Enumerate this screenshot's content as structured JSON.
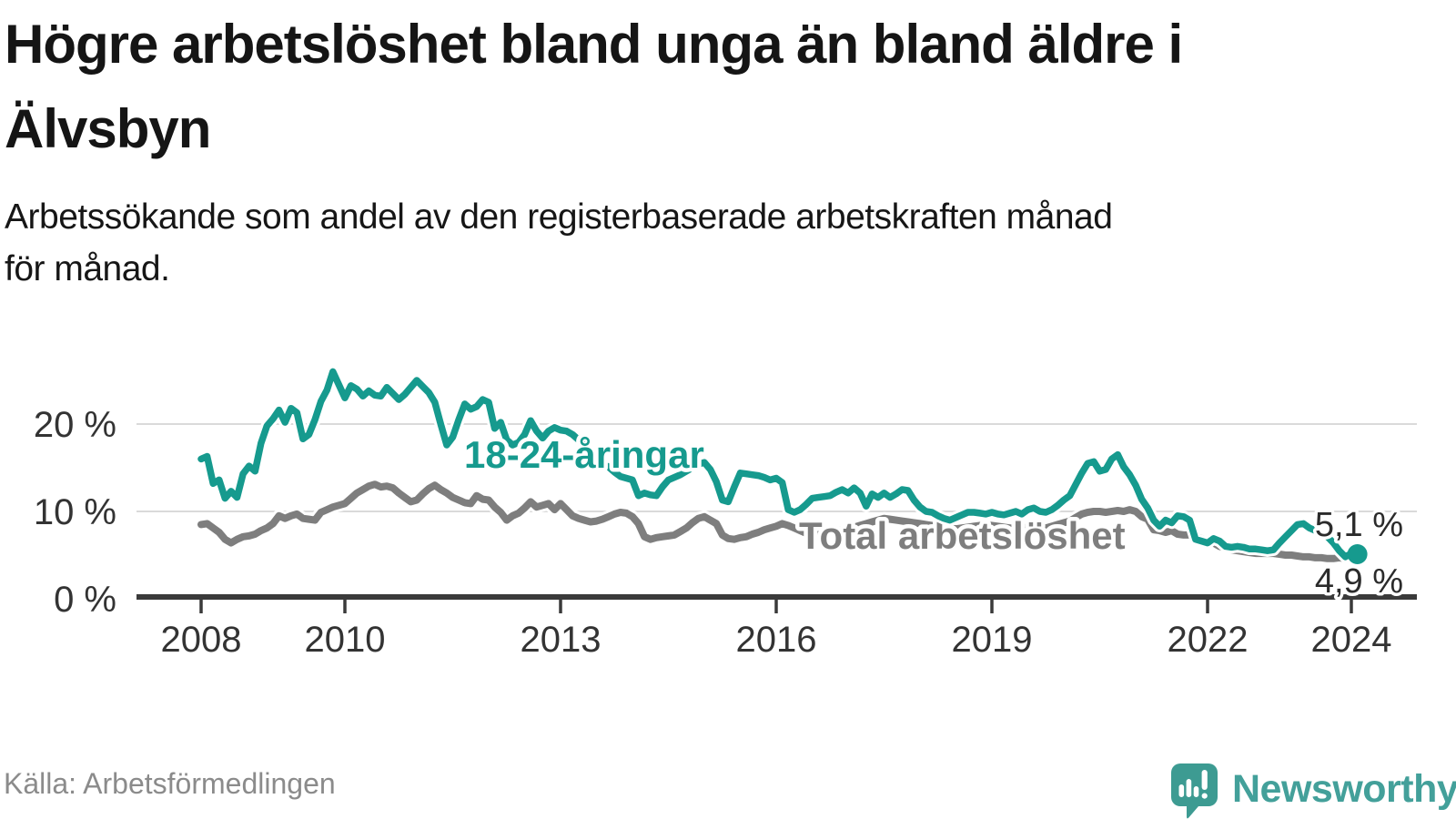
{
  "title_lines": [
    "Högre arbetslöshet bland unga än bland äldre i",
    "Älvsbyn"
  ],
  "subtitle_lines": [
    "Arbetssökande som andel av den registerbaserade arbetskraften månad",
    "för månad."
  ],
  "source": "Källa: Arbetsförmedlingen",
  "logo": {
    "text": "Newsworthy",
    "color": "#43a09a",
    "icon": "newsworthy-speech-bubble-bar-chart-icon"
  },
  "chart_data": {
    "type": "line",
    "title": "Högre arbetslöshet bland unga än bland äldre i Älvsbyn",
    "x_unit": "month",
    "x_start": "2008-01",
    "x_end": "2024-02",
    "x_tick_years": [
      2008,
      2010,
      2013,
      2016,
      2019,
      2022,
      2024
    ],
    "x_tick_labels": [
      "2008",
      "2010",
      "2013",
      "2016",
      "2019",
      "2022",
      "2024"
    ],
    "y_tick_values": [
      0,
      10,
      20
    ],
    "y_tick_labels": [
      "0 %",
      "10 %",
      "20 %"
    ],
    "ylim": [
      0,
      28
    ],
    "grid": "horizontal",
    "legend_position": "inline-annotations",
    "series": [
      {
        "name": "18-24-åringar",
        "color": "#169a8e",
        "end_label": "5,1 %",
        "end_value": 5.1,
        "values": [
          16.0,
          16.3,
          13.2,
          13.6,
          11.5,
          12.3,
          11.6,
          14.3,
          15.2,
          14.6,
          17.8,
          19.8,
          20.6,
          21.6,
          20.2,
          21.8,
          21.3,
          18.3,
          18.8,
          20.5,
          22.6,
          23.9,
          26.0,
          24.5,
          23.0,
          24.4,
          24.0,
          23.2,
          23.8,
          23.3,
          23.2,
          24.2,
          23.5,
          22.8,
          23.4,
          24.2,
          25.0,
          24.3,
          23.6,
          22.5,
          20.0,
          17.6,
          18.5,
          20.5,
          22.3,
          21.7,
          22.0,
          22.8,
          22.5,
          19.5,
          20.2,
          18.2,
          17.6,
          17.9,
          18.8,
          20.4,
          19.2,
          18.4,
          19.2,
          19.6,
          19.3,
          19.2,
          18.8,
          18.2,
          17.5,
          16.8,
          16.0,
          15.4,
          15.1,
          14.5,
          14.0,
          13.8,
          13.6,
          11.8,
          12.1,
          11.9,
          11.8,
          12.8,
          13.6,
          13.9,
          14.2,
          14.6,
          15.0,
          15.4,
          15.6,
          14.8,
          13.4,
          11.3,
          11.1,
          12.8,
          14.4,
          14.3,
          14.2,
          14.1,
          13.9,
          13.6,
          13.8,
          13.3,
          10.2,
          9.9,
          10.2,
          10.8,
          11.5,
          11.6,
          11.7,
          11.8,
          12.2,
          12.5,
          12.1,
          12.7,
          12.1,
          10.6,
          12.0,
          11.6,
          12.1,
          11.6,
          12.0,
          12.5,
          12.4,
          11.3,
          10.5,
          10.0,
          9.9,
          9.5,
          9.2,
          9.0,
          9.3,
          9.6,
          9.9,
          9.9,
          9.8,
          9.7,
          9.9,
          9.7,
          9.6,
          9.8,
          10.0,
          9.7,
          10.2,
          10.4,
          10.0,
          9.9,
          10.2,
          10.7,
          11.3,
          11.8,
          13.1,
          14.4,
          15.5,
          15.7,
          14.6,
          14.8,
          16.0,
          16.5,
          15.1,
          14.2,
          13.0,
          11.4,
          10.4,
          9.0,
          8.3,
          9.0,
          8.7,
          9.5,
          9.4,
          9.0,
          6.8,
          6.6,
          6.4,
          6.9,
          6.6,
          6.0,
          5.9,
          6.0,
          5.9,
          5.7,
          5.7,
          5.6,
          5.5,
          5.6,
          6.4,
          7.1,
          7.8,
          8.5,
          8.6,
          8.1,
          7.8,
          7.4,
          7.1,
          6.4,
          5.5,
          4.8,
          5.2,
          5.1
        ]
      },
      {
        "name": "Total arbetslöshet",
        "color": "#7e7e7e",
        "end_label": "4,9 %",
        "end_value": 4.9,
        "values": [
          8.5,
          8.6,
          8.1,
          7.6,
          6.8,
          6.4,
          6.8,
          7.1,
          7.2,
          7.4,
          7.8,
          8.1,
          8.6,
          9.5,
          9.2,
          9.5,
          9.7,
          9.2,
          9.1,
          9.0,
          9.9,
          10.2,
          10.5,
          10.7,
          10.9,
          11.5,
          12.1,
          12.5,
          12.9,
          13.1,
          12.8,
          12.9,
          12.7,
          12.1,
          11.6,
          11.1,
          11.3,
          12.0,
          12.6,
          13.0,
          12.5,
          12.1,
          11.6,
          11.3,
          11.0,
          10.9,
          11.8,
          11.4,
          11.3,
          10.5,
          9.9,
          9.0,
          9.5,
          9.8,
          10.4,
          11.1,
          10.5,
          10.7,
          10.9,
          10.2,
          10.9,
          10.2,
          9.5,
          9.2,
          9.0,
          8.8,
          8.9,
          9.1,
          9.4,
          9.7,
          9.9,
          9.8,
          9.4,
          8.6,
          7.1,
          6.8,
          7.0,
          7.1,
          7.2,
          7.3,
          7.7,
          8.1,
          8.7,
          9.2,
          9.4,
          9.0,
          8.6,
          7.3,
          6.9,
          6.8,
          7.0,
          7.1,
          7.4,
          7.6,
          7.9,
          8.1,
          8.3,
          8.6,
          8.4,
          8.1,
          7.8,
          7.5,
          7.3,
          7.4,
          7.6,
          7.7,
          7.8,
          7.9,
          8.0,
          8.2,
          8.4,
          8.6,
          8.8,
          9.0,
          9.2,
          9.1,
          9.0,
          8.9,
          8.8,
          8.7,
          8.6,
          8.5,
          8.4,
          8.3,
          8.2,
          8.1,
          8.0,
          8.1,
          8.2,
          8.3,
          8.4,
          8.5,
          8.4,
          8.3,
          8.2,
          8.1,
          8.0,
          8.1,
          8.2,
          8.3,
          8.2,
          8.1,
          8.3,
          8.5,
          8.7,
          8.9,
          9.3,
          9.7,
          9.9,
          10.0,
          10.0,
          9.9,
          10.0,
          10.1,
          10.0,
          10.2,
          10.0,
          9.4,
          9.1,
          7.9,
          7.8,
          7.6,
          7.8,
          7.4,
          7.3,
          7.3,
          7.1,
          6.9,
          6.6,
          6.4,
          6.0,
          5.8,
          5.6,
          5.5,
          5.4,
          5.3,
          5.2,
          5.2,
          5.2,
          5.2,
          5.1,
          5.0,
          5.0,
          4.9,
          4.8,
          4.8,
          4.7,
          4.7,
          4.6,
          4.6,
          4.7,
          4.6,
          4.8,
          4.9
        ]
      }
    ]
  }
}
